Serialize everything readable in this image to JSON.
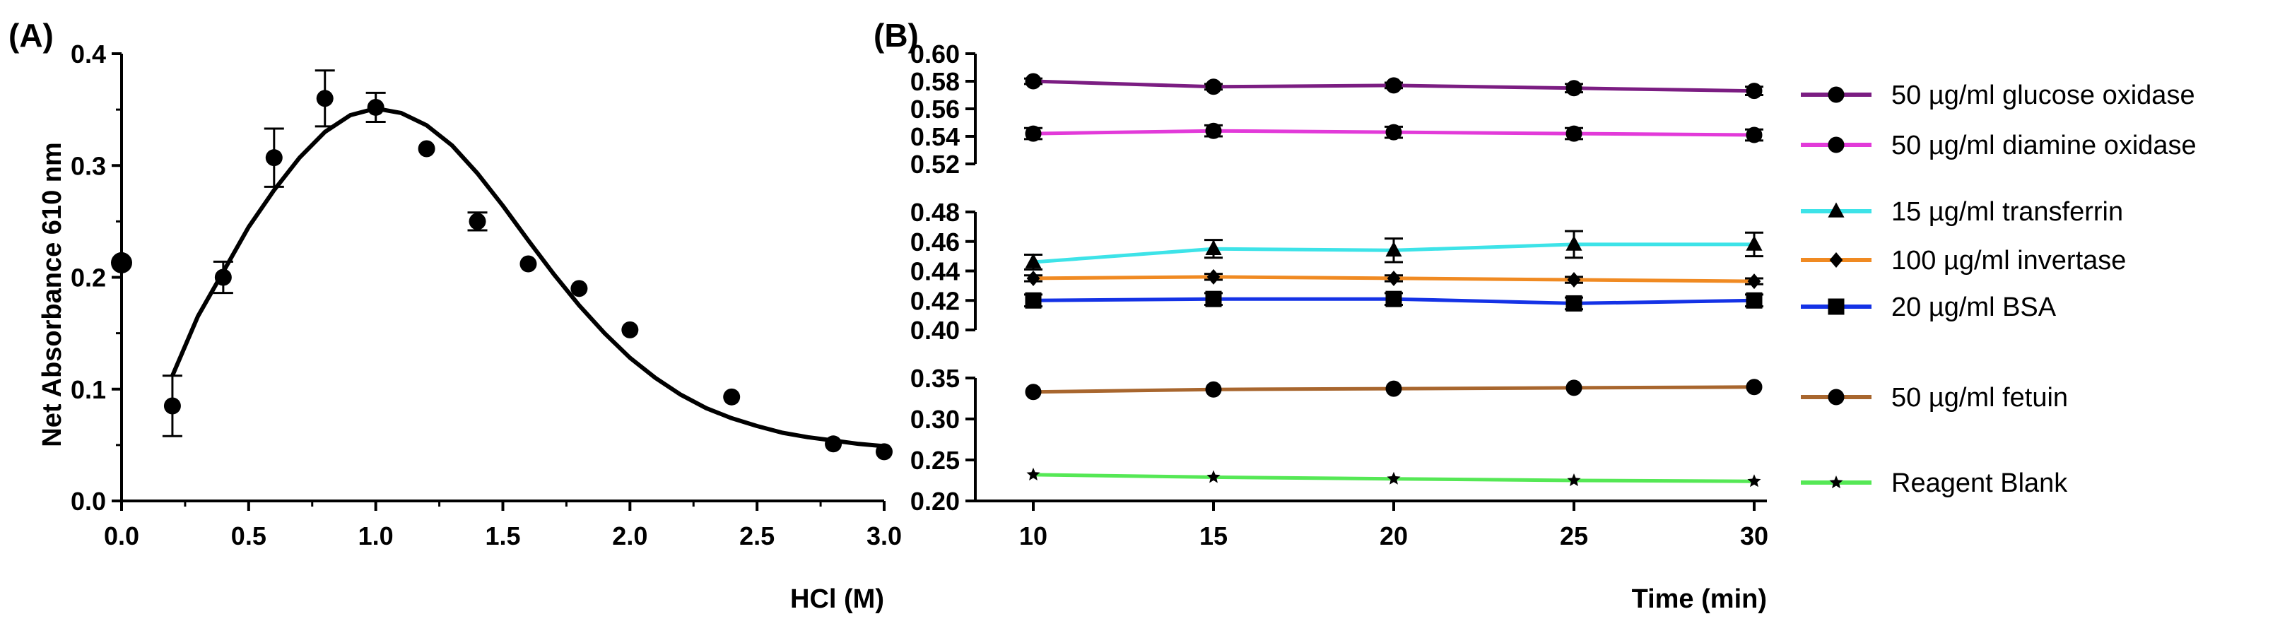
{
  "chart_data": [
    {
      "panel_label": "(A)",
      "type": "scatter",
      "xlabel": "HCl (M)",
      "ylabel": "Net Absorbance 610 nm",
      "xlim": [
        0,
        3.0
      ],
      "ylim": [
        0,
        0.4
      ],
      "xticks": [
        "0.0",
        "0.5",
        "1.0",
        "1.5",
        "2.0",
        "2.5",
        "3.0"
      ],
      "yticks": [
        "0.0",
        "0.1",
        "0.2",
        "0.3",
        "0.4"
      ],
      "points": [
        {
          "x": 0.0,
          "y": 0.213,
          "err": 0.0
        },
        {
          "x": 0.2,
          "y": 0.085,
          "err": 0.027
        },
        {
          "x": 0.4,
          "y": 0.2,
          "err": 0.014
        },
        {
          "x": 0.6,
          "y": 0.307,
          "err": 0.026
        },
        {
          "x": 0.8,
          "y": 0.36,
          "err": 0.025
        },
        {
          "x": 1.0,
          "y": 0.352,
          "err": 0.013
        },
        {
          "x": 1.2,
          "y": 0.315,
          "err": 0.0
        },
        {
          "x": 1.4,
          "y": 0.25,
          "err": 0.008
        },
        {
          "x": 1.6,
          "y": 0.212,
          "err": 0.0
        },
        {
          "x": 1.8,
          "y": 0.19,
          "err": 0.0
        },
        {
          "x": 2.0,
          "y": 0.153,
          "err": 0.0
        },
        {
          "x": 2.4,
          "y": 0.093,
          "err": 0.0
        },
        {
          "x": 2.8,
          "y": 0.051,
          "err": 0.0
        },
        {
          "x": 3.0,
          "y": 0.044,
          "err": 0.0
        }
      ],
      "fit_curve": [
        [
          0.2,
          0.112
        ],
        [
          0.3,
          0.165
        ],
        [
          0.4,
          0.205
        ],
        [
          0.5,
          0.245
        ],
        [
          0.6,
          0.278
        ],
        [
          0.7,
          0.307
        ],
        [
          0.8,
          0.33
        ],
        [
          0.9,
          0.345
        ],
        [
          1.0,
          0.351
        ],
        [
          1.1,
          0.347
        ],
        [
          1.2,
          0.336
        ],
        [
          1.3,
          0.318
        ],
        [
          1.4,
          0.293
        ],
        [
          1.5,
          0.264
        ],
        [
          1.6,
          0.233
        ],
        [
          1.7,
          0.203
        ],
        [
          1.8,
          0.175
        ],
        [
          1.9,
          0.15
        ],
        [
          2.0,
          0.128
        ],
        [
          2.1,
          0.11
        ],
        [
          2.2,
          0.095
        ],
        [
          2.3,
          0.083
        ],
        [
          2.4,
          0.074
        ],
        [
          2.5,
          0.067
        ],
        [
          2.6,
          0.061
        ],
        [
          2.7,
          0.057
        ],
        [
          2.8,
          0.054
        ],
        [
          2.9,
          0.051
        ],
        [
          3.0,
          0.049
        ]
      ]
    },
    {
      "panel_label": "(B)",
      "type": "line",
      "xlabel": "Time (min)",
      "ylabel": "",
      "x": [
        10,
        15,
        20,
        25,
        30
      ],
      "xticks": [
        "10",
        "15",
        "20",
        "25",
        "30"
      ],
      "segments": [
        {
          "ylim": [
            0.52,
            0.6
          ],
          "yticks": [
            "0.60",
            "0.58",
            "0.56",
            "0.54",
            "0.52"
          ]
        },
        {
          "ylim": [
            0.4,
            0.48
          ],
          "yticks": [
            "0.48",
            "0.46",
            "0.44",
            "0.42",
            "0.40"
          ]
        },
        {
          "ylim": [
            0.2,
            0.35
          ],
          "yticks": [
            "0.35",
            "0.30",
            "0.25",
            "0.20"
          ]
        }
      ],
      "series": [
        {
          "name": "50 µg/ml glucose oxidase",
          "color": "#7b1d82",
          "marker": "circle",
          "segment": 0,
          "values": [
            0.58,
            0.576,
            0.577,
            0.575,
            0.573
          ],
          "errors": [
            0.002,
            0.002,
            0.002,
            0.003,
            0.003
          ]
        },
        {
          "name": "50 µg/ml diamine oxidase",
          "color": "#e23ad9",
          "marker": "circle",
          "segment": 0,
          "values": [
            0.542,
            0.544,
            0.543,
            0.542,
            0.541
          ],
          "errors": [
            0.004,
            0.004,
            0.004,
            0.004,
            0.004
          ]
        },
        {
          "name": "15 µg/ml transferrin",
          "color": "#3de3e8",
          "marker": "triangle",
          "segment": 1,
          "values": [
            0.446,
            0.455,
            0.454,
            0.458,
            0.458
          ],
          "errors": [
            0.005,
            0.006,
            0.008,
            0.009,
            0.008
          ]
        },
        {
          "name": "100 µg/ml invertase",
          "color": "#f08a22",
          "marker": "diamond",
          "segment": 1,
          "values": [
            0.435,
            0.436,
            0.435,
            0.434,
            0.433
          ],
          "errors": [
            0.002,
            0.002,
            0.002,
            0.002,
            0.002
          ]
        },
        {
          "name": "20 µg/ml BSA",
          "color": "#1432e6",
          "marker": "square",
          "segment": 1,
          "values": [
            0.42,
            0.421,
            0.421,
            0.418,
            0.42
          ],
          "errors": [
            0.004,
            0.004,
            0.004,
            0.004,
            0.004
          ]
        },
        {
          "name": "50 µg/ml fetuin",
          "color": "#a8662e",
          "marker": "circle",
          "segment": 2,
          "values": [
            0.333,
            0.336,
            0.337,
            0.338,
            0.339
          ],
          "errors": [
            0.0,
            0.0,
            0.0,
            0.0,
            0.0
          ]
        },
        {
          "name": "Reagent Blank",
          "color": "#55e855",
          "marker": "star",
          "segment": 2,
          "values": [
            0.232,
            0.229,
            0.227,
            0.225,
            0.224
          ],
          "errors": [
            0.0,
            0.0,
            0.0,
            0.0,
            0.0
          ]
        }
      ]
    }
  ]
}
